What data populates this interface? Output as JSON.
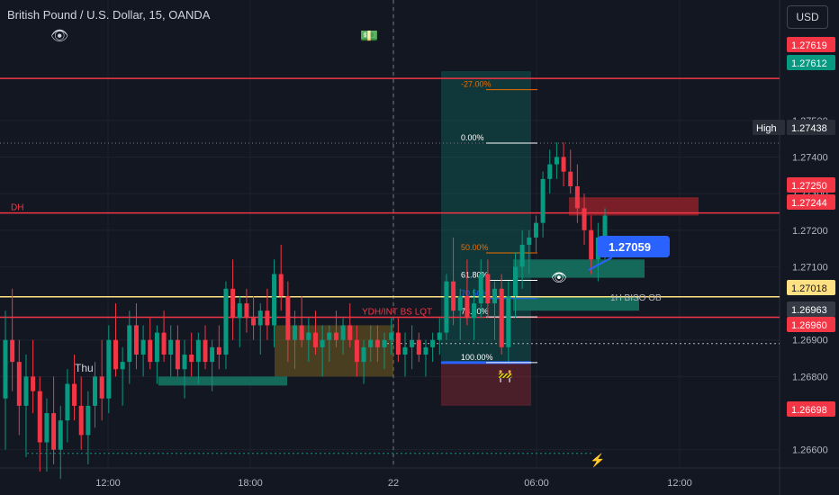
{
  "header": {
    "title": "British Pound / U.S. Dollar, 15, OANDA",
    "currency": "USD"
  },
  "icons": {
    "eye": "eye-icon",
    "money": "money-icon",
    "lightning": "lightning-icon",
    "barrier": "barrier-icon"
  },
  "chart_data": {
    "type": "candlestick",
    "y_axis": {
      "ticks": [
        "1.27500",
        "1.27400",
        "1.27300",
        "1.27200",
        "1.27100",
        "1.26900",
        "1.26800",
        "1.26600"
      ],
      "tick_values": [
        1.275,
        1.274,
        1.273,
        1.272,
        1.271,
        1.269,
        1.268,
        1.266
      ],
      "range": [
        1.2655,
        1.2778
      ]
    },
    "x_axis": {
      "ticks": [
        "12:00",
        "18:00",
        "22",
        "06:00",
        "12:00"
      ]
    },
    "session_label": "Thu",
    "price_labels": [
      {
        "text": "1.27619",
        "value": 1.27619,
        "color": "#f23645"
      },
      {
        "text": "1.27612",
        "value": 1.27612,
        "color": "#089981"
      },
      {
        "text": "1.27438",
        "value": 1.27438,
        "color": "#2a2e39",
        "prefix": "High"
      },
      {
        "text": "1.27250",
        "value": 1.2725,
        "color": "#f23645"
      },
      {
        "text": "1.27244",
        "value": 1.27244,
        "color": "#f23645"
      },
      {
        "text": "1.27018",
        "value": 1.27018,
        "color": "#ffe082"
      },
      {
        "text": "1.26963",
        "value": 1.26963,
        "color": "#363a45"
      },
      {
        "text": "1.26960",
        "value": 1.2696,
        "color": "#f23645"
      },
      {
        "text": "1.26698",
        "value": 1.26698,
        "color": "#f23645"
      }
    ],
    "horizontal_lines": [
      {
        "label": "",
        "value": 1.27615,
        "color": "#f23645"
      },
      {
        "label": "DH",
        "value": 1.27247,
        "color": "#f23645"
      },
      {
        "label": "YDH/INT BS LQT",
        "value": 1.26962,
        "color": "#f23645"
      },
      {
        "label": "1H BISO OB",
        "value": 1.27018,
        "color": "#ffe082"
      }
    ],
    "fib_levels": [
      {
        "label": "-27.00%",
        "value": 1.27584,
        "color": "#ef6c00"
      },
      {
        "label": "0.00%",
        "value": 1.27438,
        "color": "#ffffff"
      },
      {
        "label": "50.00%",
        "value": 1.27138,
        "color": "#ef6c00"
      },
      {
        "label": "61.80%",
        "value": 1.27063,
        "color": "#ffffff"
      },
      {
        "label": "70.50%",
        "value": 1.27013,
        "color": "#2962ff"
      },
      {
        "label": "78.60%",
        "value": 1.26963,
        "color": "#ffffff"
      },
      {
        "label": "100.00%",
        "value": 1.26838,
        "color": "#ffffff"
      }
    ],
    "callout": "1.27059",
    "candles": [
      [
        1.2674,
        1.2698,
        1.266,
        1.269
      ],
      [
        1.269,
        1.2704,
        1.2676,
        1.2684
      ],
      [
        1.2684,
        1.269,
        1.2664,
        1.2672
      ],
      [
        1.2672,
        1.2686,
        1.2658,
        1.268
      ],
      [
        1.268,
        1.269,
        1.267,
        1.2676
      ],
      [
        1.2676,
        1.268,
        1.2654,
        1.2662
      ],
      [
        1.2662,
        1.2674,
        1.2654,
        1.267
      ],
      [
        1.267,
        1.268,
        1.2656,
        1.266
      ],
      [
        1.266,
        1.2672,
        1.2652,
        1.2668
      ],
      [
        1.2668,
        1.2682,
        1.2662,
        1.2678
      ],
      [
        1.2678,
        1.2686,
        1.2668,
        1.2672
      ],
      [
        1.2672,
        1.268,
        1.266,
        1.2664
      ],
      [
        1.2664,
        1.2676,
        1.2656,
        1.2672
      ],
      [
        1.2672,
        1.2684,
        1.2666,
        1.268
      ],
      [
        1.268,
        1.269,
        1.2668,
        1.2674
      ],
      [
        1.2674,
        1.2694,
        1.267,
        1.269
      ],
      [
        1.269,
        1.27,
        1.268,
        1.2682
      ],
      [
        1.2682,
        1.2688,
        1.2672,
        1.2684
      ],
      [
        1.2684,
        1.2698,
        1.2678,
        1.2694
      ],
      [
        1.2694,
        1.27,
        1.2682,
        1.2686
      ],
      [
        1.2686,
        1.2694,
        1.268,
        1.269
      ],
      [
        1.269,
        1.2696,
        1.2682,
        1.2684
      ],
      [
        1.2684,
        1.2694,
        1.2678,
        1.2692
      ],
      [
        1.2692,
        1.2698,
        1.2684,
        1.2686
      ],
      [
        1.2686,
        1.2694,
        1.268,
        1.269
      ],
      [
        1.269,
        1.2694,
        1.268,
        1.2682
      ],
      [
        1.2682,
        1.269,
        1.2674,
        1.2686
      ],
      [
        1.2686,
        1.2692,
        1.268,
        1.2684
      ],
      [
        1.2684,
        1.2692,
        1.2678,
        1.269
      ],
      [
        1.269,
        1.2694,
        1.2682,
        1.2684
      ],
      [
        1.2684,
        1.269,
        1.2676,
        1.2688
      ],
      [
        1.2688,
        1.2694,
        1.2682,
        1.2686
      ],
      [
        1.2686,
        1.2706,
        1.2682,
        1.2704
      ],
      [
        1.2704,
        1.2712,
        1.269,
        1.2696
      ],
      [
        1.2696,
        1.2702,
        1.2688,
        1.27
      ],
      [
        1.27,
        1.2704,
        1.2692,
        1.2696
      ],
      [
        1.2696,
        1.2702,
        1.269,
        1.2694
      ],
      [
        1.2694,
        1.27,
        1.2686,
        1.2698
      ],
      [
        1.2698,
        1.2704,
        1.269,
        1.2694
      ],
      [
        1.2694,
        1.2712,
        1.2688,
        1.2708
      ],
      [
        1.2708,
        1.2716,
        1.2698,
        1.2702
      ],
      [
        1.2702,
        1.2706,
        1.2684,
        1.269
      ],
      [
        1.269,
        1.2698,
        1.2682,
        1.2694
      ],
      [
        1.2694,
        1.2702,
        1.2688,
        1.269
      ],
      [
        1.269,
        1.2696,
        1.2684,
        1.2692
      ],
      [
        1.2692,
        1.2698,
        1.2686,
        1.2688
      ],
      [
        1.2688,
        1.2694,
        1.268,
        1.269
      ],
      [
        1.269,
        1.2694,
        1.2684,
        1.2692
      ],
      [
        1.2692,
        1.2698,
        1.2688,
        1.269
      ],
      [
        1.269,
        1.2696,
        1.2686,
        1.2694
      ],
      [
        1.2694,
        1.27,
        1.2688,
        1.269
      ],
      [
        1.269,
        1.2694,
        1.268,
        1.2684
      ],
      [
        1.2684,
        1.269,
        1.2678,
        1.2688
      ],
      [
        1.2688,
        1.2694,
        1.2684,
        1.269
      ],
      [
        1.269,
        1.2694,
        1.2684,
        1.2688
      ],
      [
        1.2688,
        1.2692,
        1.2682,
        1.269
      ],
      [
        1.269,
        1.2696,
        1.2686,
        1.2692
      ],
      [
        1.2692,
        1.2696,
        1.2684,
        1.2686
      ],
      [
        1.2686,
        1.2692,
        1.268,
        1.2688
      ],
      [
        1.2688,
        1.2694,
        1.2682,
        1.269
      ],
      [
        1.269,
        1.2692,
        1.2684,
        1.2686
      ],
      [
        1.2686,
        1.269,
        1.268,
        1.2688
      ],
      [
        1.2688,
        1.2692,
        1.2684,
        1.269
      ],
      [
        1.269,
        1.2696,
        1.2686,
        1.2692
      ],
      [
        1.2692,
        1.2708,
        1.269,
        1.2706
      ],
      [
        1.2706,
        1.2718,
        1.2694,
        1.2698
      ],
      [
        1.2698,
        1.2704,
        1.269,
        1.2702
      ],
      [
        1.2702,
        1.2712,
        1.2694,
        1.2696
      ],
      [
        1.2696,
        1.2704,
        1.269,
        1.27
      ],
      [
        1.27,
        1.2712,
        1.2696,
        1.2708
      ],
      [
        1.2708,
        1.2712,
        1.2696,
        1.27
      ],
      [
        1.27,
        1.2706,
        1.269,
        1.2704
      ],
      [
        1.2704,
        1.2708,
        1.2686,
        1.2688
      ],
      [
        1.2688,
        1.2706,
        1.2684,
        1.2702
      ],
      [
        1.2702,
        1.2714,
        1.2696,
        1.271
      ],
      [
        1.271,
        1.272,
        1.2704,
        1.2716
      ],
      [
        1.2716,
        1.272,
        1.2708,
        1.2718
      ],
      [
        1.2718,
        1.2724,
        1.2714,
        1.2722
      ],
      [
        1.2722,
        1.2736,
        1.2718,
        1.2734
      ],
      [
        1.2734,
        1.2742,
        1.273,
        1.2738
      ],
      [
        1.2738,
        1.2744,
        1.2734,
        1.274
      ],
      [
        1.274,
        1.2744,
        1.2732,
        1.2736
      ],
      [
        1.2736,
        1.2742,
        1.273,
        1.2732
      ],
      [
        1.2732,
        1.2738,
        1.2722,
        1.2726
      ],
      [
        1.2726,
        1.273,
        1.2716,
        1.272
      ],
      [
        1.272,
        1.2724,
        1.2708,
        1.2712
      ],
      [
        1.2712,
        1.2722,
        1.2706,
        1.2718
      ],
      [
        1.2718,
        1.2726,
        1.2712,
        1.2724
      ]
    ]
  }
}
